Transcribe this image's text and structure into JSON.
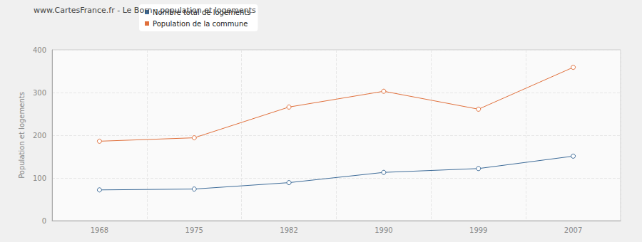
{
  "chart_data": {
    "type": "line",
    "title": "www.CartesFrance.fr - Le Born : population et logements",
    "y_label": "Population et logements",
    "categories": [
      "1968",
      "1975",
      "1982",
      "1990",
      "1999",
      "2007"
    ],
    "series": [
      {
        "name": "Nombre total de logements",
        "color": "#3d6b98",
        "values": [
          72,
          74,
          89,
          113,
          122,
          151
        ]
      },
      {
        "name": "Population de la commune",
        "color": "#e0703c",
        "values": [
          186,
          194,
          266,
          303,
          261,
          359
        ]
      }
    ],
    "ylim": [
      0,
      400
    ],
    "yticks": [
      0,
      100,
      200,
      300,
      400
    ],
    "grid": true,
    "legend": "top",
    "marker": "circle"
  }
}
